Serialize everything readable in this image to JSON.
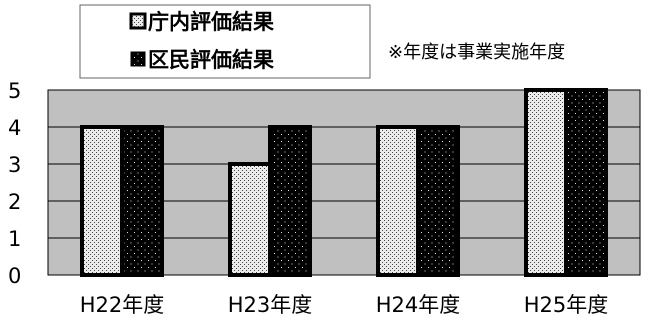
{
  "chart_data": {
    "type": "bar",
    "categories": [
      "H22年度",
      "H23年度",
      "H24年度",
      "H25年度"
    ],
    "series": [
      {
        "name": "庁内評価結果",
        "values": [
          4,
          3,
          4,
          5
        ],
        "pattern": "light-dots"
      },
      {
        "name": "区民評価結果",
        "values": [
          4,
          4,
          4,
          5
        ],
        "pattern": "dark-dots"
      }
    ],
    "ylim": [
      0,
      5
    ],
    "yticks": [
      "0",
      "1",
      "2",
      "3",
      "4",
      "5"
    ],
    "grid": true,
    "legend_position": "top-left",
    "annotation": "※年度は事業実施年度",
    "colors": {
      "plot_bg": "#c0c0c0",
      "light_bar": "#e6e6e6",
      "dark_bar": "#000000"
    }
  }
}
